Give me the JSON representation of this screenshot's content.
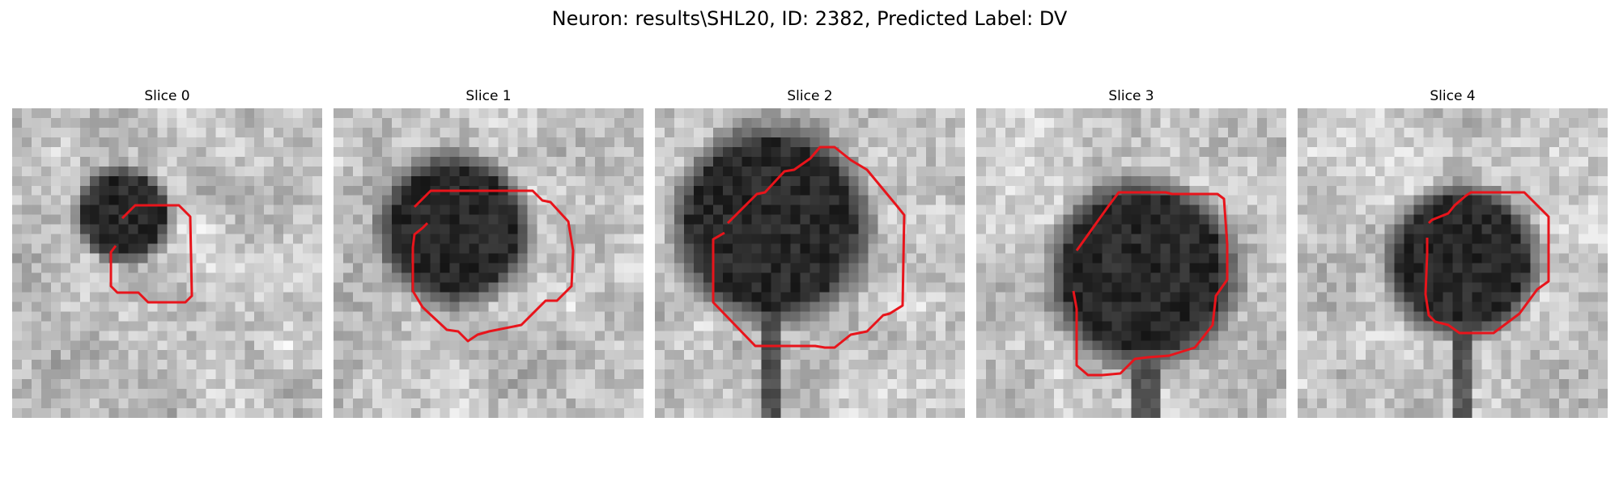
{
  "figure": {
    "title": "Neuron: results\\SHL20, ID: 2382, Predicted Label: DV"
  },
  "slices": [
    {
      "label": "Slice 0"
    },
    {
      "label": "Slice 1"
    },
    {
      "label": "Slice 2"
    },
    {
      "label": "Slice 3"
    },
    {
      "label": "Slice 4"
    }
  ],
  "colors": {
    "contour": "#e8141b",
    "background": "#ffffff"
  }
}
